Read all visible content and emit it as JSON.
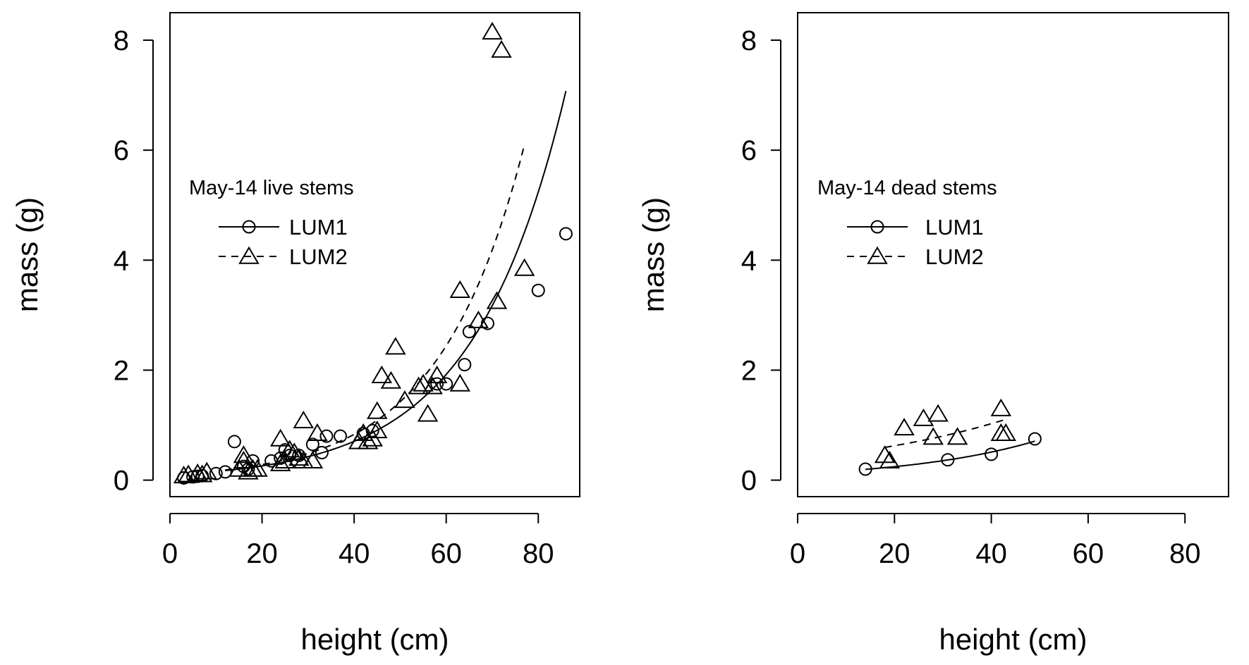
{
  "chart_data": [
    {
      "type": "scatter",
      "title": "",
      "xlabel": "height (cm)",
      "ylabel": "mass (g)",
      "xlim": [
        0,
        89
      ],
      "ylim": [
        -0.3,
        8.5
      ],
      "xticks": [
        "0",
        "20",
        "40",
        "60",
        "80"
      ],
      "xtick_values": [
        0,
        20,
        40,
        60,
        80
      ],
      "yticks": [
        "0",
        "2",
        "4",
        "6",
        "8"
      ],
      "ytick_values": [
        0,
        2,
        4,
        6,
        8
      ],
      "grid": false,
      "legend": {
        "title": "May-14 live stems",
        "position": "middle-left",
        "entries": [
          "LUM1",
          "LUM2"
        ]
      },
      "series": [
        {
          "name": "LUM1",
          "marker": "circle",
          "line": "solid",
          "points": [
            [
              3,
              0.04
            ],
            [
              5,
              0.06
            ],
            [
              6,
              0.07
            ],
            [
              7,
              0.08
            ],
            [
              10,
              0.12
            ],
            [
              12,
              0.15
            ],
            [
              14,
              0.7
            ],
            [
              16,
              0.25
            ],
            [
              17,
              0.2
            ],
            [
              18,
              0.35
            ],
            [
              22,
              0.35
            ],
            [
              24,
              0.4
            ],
            [
              25,
              0.55
            ],
            [
              26,
              0.45
            ],
            [
              28,
              0.45
            ],
            [
              31,
              0.65
            ],
            [
              33,
              0.5
            ],
            [
              34,
              0.8
            ],
            [
              37,
              0.8
            ],
            [
              42,
              0.85
            ],
            [
              44,
              0.9
            ],
            [
              58,
              1.75
            ],
            [
              60,
              1.75
            ],
            [
              64,
              2.1
            ],
            [
              65,
              2.7
            ],
            [
              69,
              2.85
            ],
            [
              80,
              3.45
            ],
            [
              86,
              4.48
            ]
          ],
          "fit_x": [
            12,
            86
          ]
        },
        {
          "name": "LUM2",
          "marker": "triangle",
          "line": "dashed",
          "points": [
            [
              3,
              0.08
            ],
            [
              4,
              0.1
            ],
            [
              6,
              0.12
            ],
            [
              7,
              0.1
            ],
            [
              8,
              0.15
            ],
            [
              15,
              0.2
            ],
            [
              16,
              0.45
            ],
            [
              16,
              0.35
            ],
            [
              17,
              0.15
            ],
            [
              18,
              0.2
            ],
            [
              19,
              0.2
            ],
            [
              24,
              0.3
            ],
            [
              24,
              0.75
            ],
            [
              25,
              0.35
            ],
            [
              26,
              0.55
            ],
            [
              27,
              0.5
            ],
            [
              28,
              0.4
            ],
            [
              29,
              0.35
            ],
            [
              29,
              1.08
            ],
            [
              31,
              0.35
            ],
            [
              32,
              0.85
            ],
            [
              41,
              0.7
            ],
            [
              42,
              0.85
            ],
            [
              43,
              0.7
            ],
            [
              44,
              0.75
            ],
            [
              45,
              1.25
            ],
            [
              45,
              0.9
            ],
            [
              46,
              1.9
            ],
            [
              48,
              1.8
            ],
            [
              49,
              2.42
            ],
            [
              51,
              1.45
            ],
            [
              54,
              1.7
            ],
            [
              55,
              1.75
            ],
            [
              56,
              1.2
            ],
            [
              57,
              1.7
            ],
            [
              58,
              1.9
            ],
            [
              63,
              3.45
            ],
            [
              63,
              1.75
            ],
            [
              67,
              2.9
            ],
            [
              70,
              8.15
            ],
            [
              71,
              3.25
            ],
            [
              72,
              7.82
            ],
            [
              77,
              3.85
            ]
          ],
          "fit_x": [
            12,
            77
          ]
        }
      ]
    },
    {
      "type": "scatter",
      "title": "",
      "xlabel": "height (cm)",
      "ylabel": "mass (g)",
      "xlim": [
        0,
        89
      ],
      "ylim": [
        -0.3,
        8.5
      ],
      "xticks": [
        "0",
        "20",
        "40",
        "60",
        "80"
      ],
      "xtick_values": [
        0,
        20,
        40,
        60,
        80
      ],
      "yticks": [
        "0",
        "2",
        "4",
        "6",
        "8"
      ],
      "ytick_values": [
        0,
        2,
        4,
        6,
        8
      ],
      "grid": false,
      "legend": {
        "title": "May-14 dead stems",
        "position": "middle-left",
        "entries": [
          "LUM1",
          "LUM2"
        ]
      },
      "series": [
        {
          "name": "LUM1",
          "marker": "circle",
          "line": "solid",
          "points": [
            [
              14,
              0.2
            ],
            [
              31,
              0.37
            ],
            [
              40,
              0.47
            ],
            [
              49,
              0.75
            ]
          ],
          "fit_x": [
            14,
            49
          ]
        },
        {
          "name": "LUM2",
          "marker": "triangle",
          "line": "dashed",
          "points": [
            [
              18,
              0.45
            ],
            [
              19,
              0.35
            ],
            [
              22,
              0.95
            ],
            [
              26,
              1.12
            ],
            [
              28,
              0.78
            ],
            [
              29,
              1.2
            ],
            [
              33,
              0.78
            ],
            [
              42,
              1.3
            ],
            [
              42,
              0.85
            ],
            [
              43,
              0.85
            ]
          ],
          "fit_x": [
            18,
            43
          ]
        }
      ]
    }
  ]
}
